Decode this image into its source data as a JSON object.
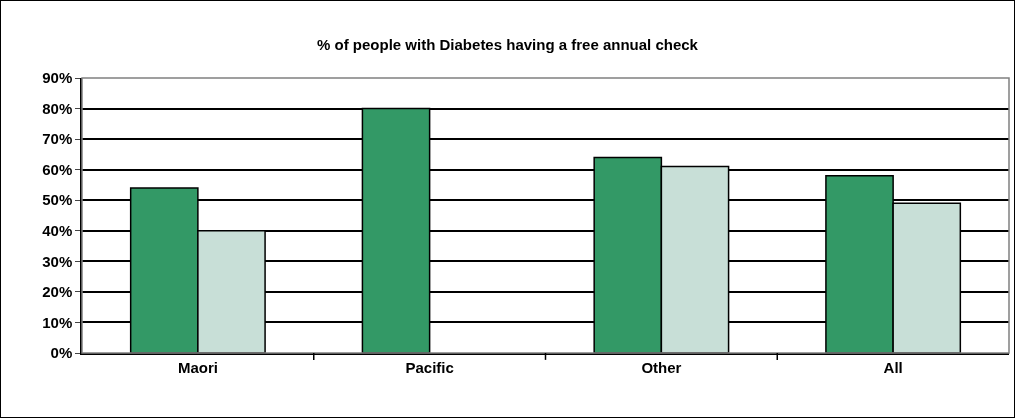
{
  "chart_data": {
    "type": "bar",
    "title": "% of people with Diabetes having a free annual check",
    "categories": [
      "Maori",
      "Pacific",
      "Other",
      "All"
    ],
    "series": [
      {
        "color": "#339966",
        "values": [
          54,
          80,
          64,
          58
        ]
      },
      {
        "color": "#c8dfd7",
        "values": [
          40,
          null,
          61,
          49
        ]
      }
    ],
    "ylim": [
      0,
      90
    ],
    "yticks": [
      {
        "value": 0,
        "label": "0%"
      },
      {
        "value": 10,
        "label": "10%"
      },
      {
        "value": 20,
        "label": "20%"
      },
      {
        "value": 30,
        "label": "30%"
      },
      {
        "value": 40,
        "label": "40%"
      },
      {
        "value": 50,
        "label": "50%"
      },
      {
        "value": 60,
        "label": "60%"
      },
      {
        "value": 70,
        "label": "70%"
      },
      {
        "value": 80,
        "label": "80%"
      },
      {
        "value": 90,
        "label": "90%"
      }
    ],
    "grid": "y"
  }
}
